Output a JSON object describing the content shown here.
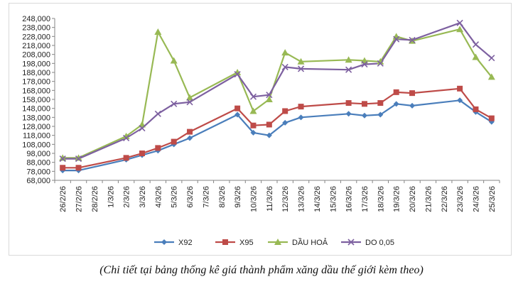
{
  "chart_data": {
    "type": "line",
    "title": "",
    "xlabel": "",
    "ylabel": "",
    "ylim": [
      68000,
      248000
    ],
    "yticks": [
      "68,000",
      "78,000",
      "88,000",
      "98,000",
      "108,000",
      "118,000",
      "128,000",
      "138,000",
      "148,000",
      "158,000",
      "168,000",
      "178,000",
      "188,000",
      "198,000",
      "208,000",
      "218,000",
      "228,000",
      "238,000",
      "248,000"
    ],
    "categories": [
      "26/2/26",
      "27/2/26",
      "28/2/26",
      "1/3/26",
      "2/3/26",
      "3/3/26",
      "4/3/26",
      "5/3/26",
      "6/3/26",
      "7/3/26",
      "8/3/26",
      "9/3/26",
      "10/3/26",
      "11/3/26",
      "12/3/26",
      "13/3/26",
      "14/3/26",
      "15/3/26",
      "16/3/26",
      "17/3/26",
      "18/3/26",
      "19/3/26",
      "20/3/26",
      "21/3/26",
      "22/3/26",
      "23/3/26",
      "24/3/26",
      "25/3/26"
    ],
    "series": [
      {
        "name": "X92",
        "color": "#4a7ebb",
        "marker": "diamond",
        "values": [
          79000,
          79000,
          null,
          null,
          91000,
          96000,
          101000,
          108000,
          115000,
          null,
          null,
          141000,
          121000,
          118000,
          132000,
          138000,
          null,
          null,
          142000,
          140000,
          141000,
          153000,
          151000,
          null,
          null,
          157000,
          144000,
          133000
        ]
      },
      {
        "name": "X95",
        "color": "#be4b48",
        "marker": "square",
        "values": [
          82000,
          82000,
          null,
          null,
          93000,
          98000,
          104000,
          111000,
          122000,
          null,
          null,
          148000,
          129000,
          130000,
          145000,
          150000,
          null,
          null,
          154000,
          153000,
          154000,
          166000,
          165000,
          null,
          null,
          170000,
          147000,
          137000
        ]
      },
      {
        "name": "DẦU HOẢ",
        "color": "#98b954",
        "marker": "triangle",
        "values": [
          93000,
          93000,
          null,
          null,
          117000,
          130000,
          233000,
          201000,
          160000,
          null,
          null,
          188000,
          145000,
          158000,
          210000,
          200000,
          null,
          null,
          202000,
          201000,
          200000,
          228000,
          223000,
          null,
          null,
          236000,
          205000,
          183000
        ]
      },
      {
        "name": "DO 0,05",
        "color": "#7d60a0",
        "marker": "x",
        "values": [
          92000,
          92000,
          null,
          null,
          115000,
          126000,
          142000,
          153000,
          155000,
          null,
          null,
          186000,
          161000,
          163000,
          194000,
          192000,
          null,
          null,
          191000,
          197000,
          198000,
          225000,
          224000,
          null,
          null,
          243000,
          219000,
          204000
        ]
      }
    ],
    "legend_position": "bottom",
    "grid": false
  },
  "caption": "(Chi tiết tại bảng thống kê giá thành phẩm xăng dầu thế giới kèm theo)"
}
